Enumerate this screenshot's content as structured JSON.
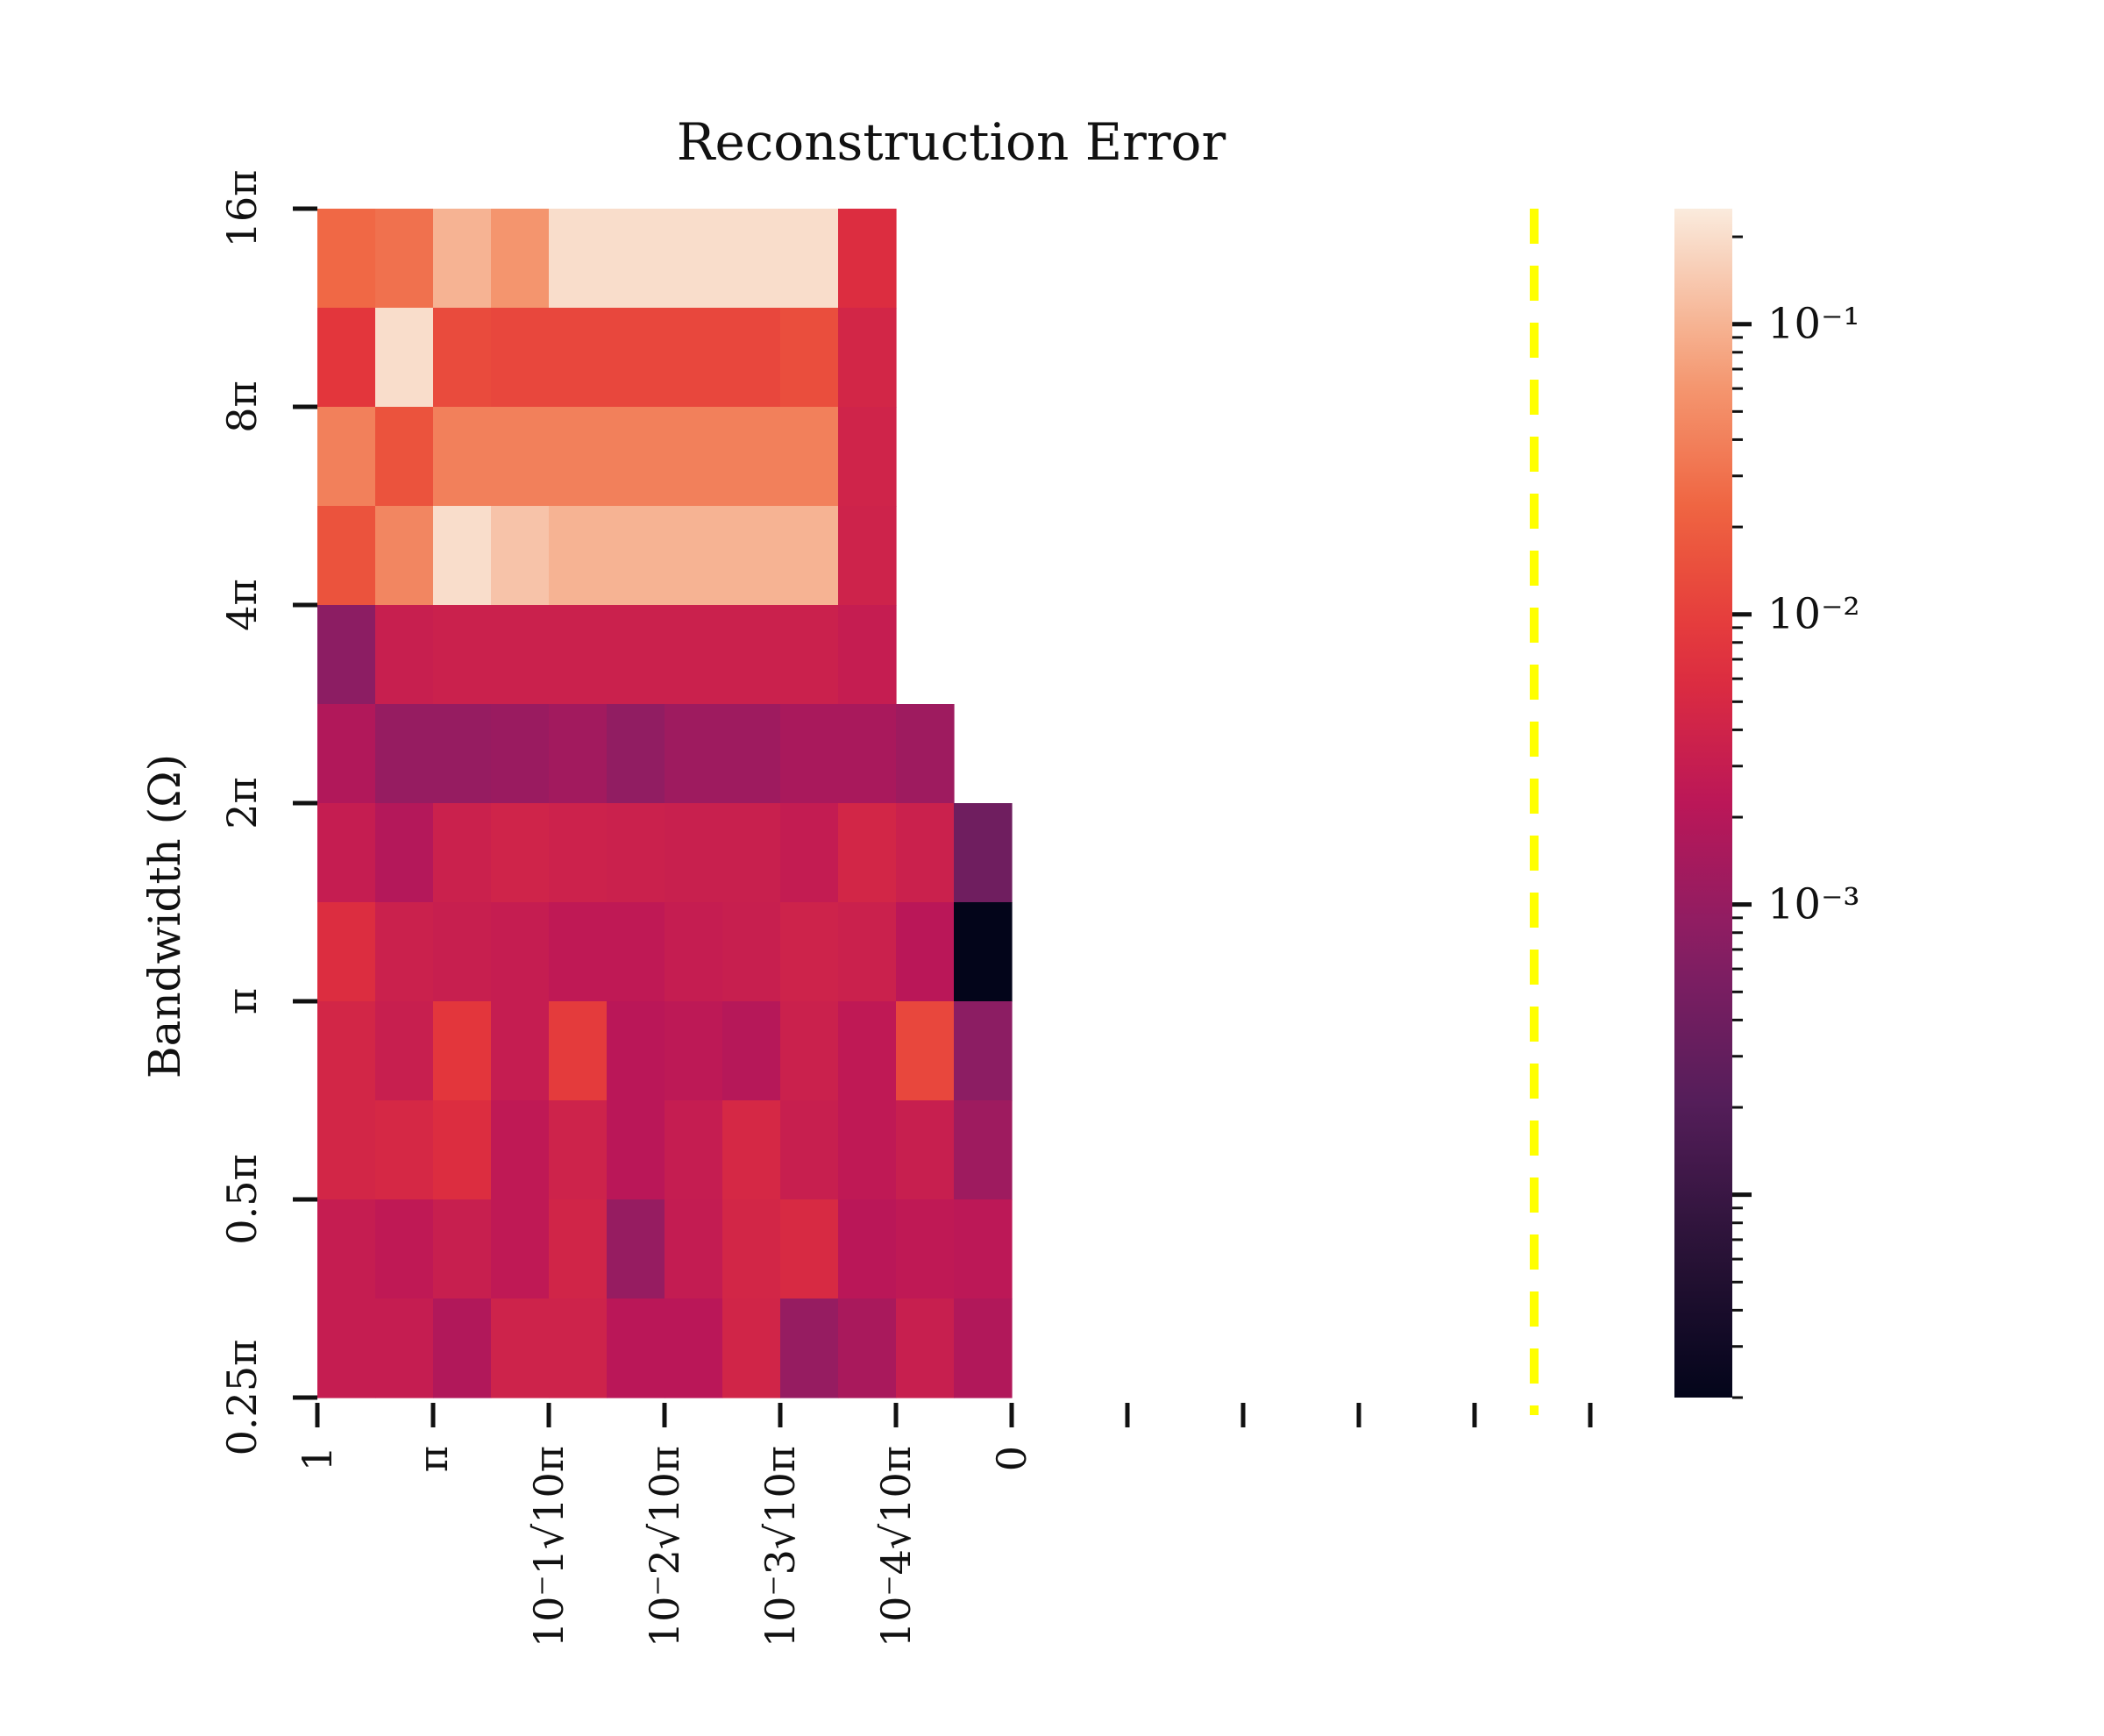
{
  "chart_data": {
    "type": "heatmap",
    "title": "Reconstruction Error",
    "ylabel": "Bandwidth (Ω)",
    "xlabel": "",
    "y_tick_labels": [
      "16π",
      "8π",
      "4π",
      "2π",
      "π",
      "0.5π",
      "0.25π"
    ],
    "x_tick_labels": [
      "1",
      "π",
      "10⁻1√10π",
      "10⁻2√10π",
      "10⁻3√10π",
      "10⁻4√10π",
      "0",
      "",
      "",
      "",
      "",
      ""
    ],
    "columns": 13,
    "rows": 12,
    "colorbar": {
      "scale": "log",
      "vmin": 2e-05,
      "vmax": 0.25,
      "tick_labels": [
        "10⁻¹",
        "10⁻²",
        "10⁻³"
      ],
      "tick_values": [
        0.1,
        0.01,
        0.001
      ]
    },
    "values": [
      [
        0.025,
        0.03,
        0.1,
        0.06,
        0.2,
        0.2,
        0.2,
        0.2,
        0.2,
        0.006,
        null,
        null,
        null
      ],
      [
        0.008,
        0.2,
        0.013,
        0.012,
        0.012,
        0.012,
        0.012,
        0.012,
        0.014,
        0.0045,
        null,
        null,
        null
      ],
      [
        0.04,
        0.016,
        0.04,
        0.04,
        0.04,
        0.04,
        0.04,
        0.04,
        0.04,
        0.004,
        null,
        null,
        null
      ],
      [
        0.016,
        0.045,
        0.2,
        0.13,
        0.1,
        0.1,
        0.1,
        0.1,
        0.1,
        0.0038,
        null,
        null,
        null
      ],
      [
        0.0008,
        0.0032,
        0.0035,
        0.0035,
        0.0035,
        0.0035,
        0.0035,
        0.0035,
        0.0035,
        0.003,
        null,
        null,
        null
      ],
      [
        0.0018,
        0.001,
        0.001,
        0.0011,
        0.0013,
        0.0009,
        0.0012,
        0.0012,
        0.0015,
        0.0015,
        0.0012,
        null,
        null
      ],
      [
        0.003,
        0.0019,
        0.0035,
        0.004,
        0.0037,
        0.0035,
        0.0033,
        0.0033,
        0.0028,
        0.0045,
        0.0035,
        0.0004,
        null
      ],
      [
        0.006,
        0.0035,
        0.0032,
        0.003,
        0.0025,
        0.0025,
        0.003,
        0.0032,
        0.0038,
        0.0035,
        0.0022,
        2e-05,
        null
      ],
      [
        0.0045,
        0.0032,
        0.008,
        0.003,
        0.009,
        0.0022,
        0.0024,
        0.002,
        0.0035,
        0.0025,
        0.012,
        0.0008,
        null
      ],
      [
        0.0045,
        0.0048,
        0.006,
        0.0025,
        0.0038,
        0.0022,
        0.003,
        0.0048,
        0.0032,
        0.0025,
        0.0032,
        0.0012,
        null
      ],
      [
        0.003,
        0.0025,
        0.0032,
        0.0025,
        0.0042,
        0.001,
        0.0028,
        0.0045,
        0.0052,
        0.0022,
        0.0025,
        0.0023,
        null
      ],
      [
        0.003,
        0.003,
        0.0018,
        0.0038,
        0.0038,
        0.0022,
        0.0022,
        0.0042,
        0.001,
        0.0015,
        0.0032,
        0.0018,
        null
      ]
    ],
    "reference_line_color": "#ffff00"
  }
}
